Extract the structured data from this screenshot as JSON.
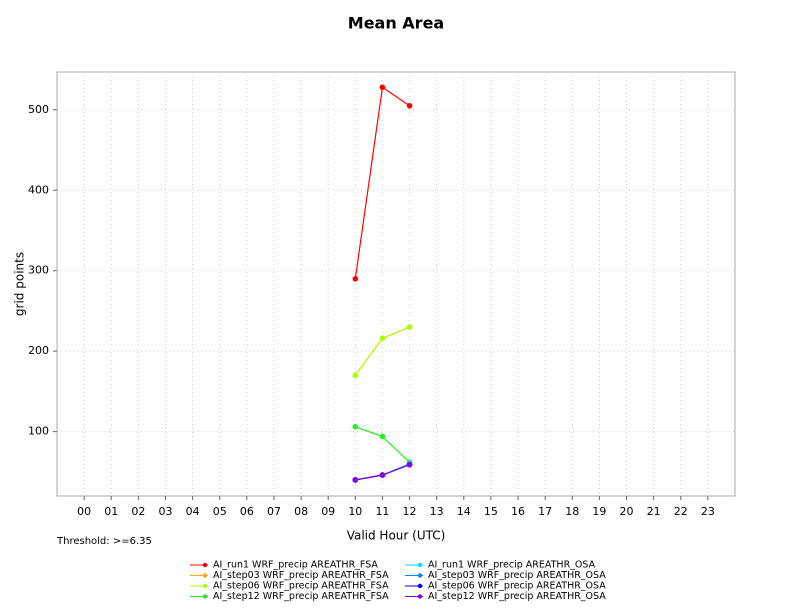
{
  "chart_data": {
    "type": "line",
    "title": "Mean Area",
    "x_label": "Valid Hour (UTC)",
    "y_label": "grid points",
    "annotation": "Threshold: >=6.35",
    "categories": [
      "00",
      "01",
      "02",
      "03",
      "04",
      "05",
      "06",
      "07",
      "08",
      "09",
      "10",
      "11",
      "12",
      "13",
      "14",
      "15",
      "16",
      "17",
      "18",
      "19",
      "20",
      "21",
      "22",
      "23"
    ],
    "ylim": [
      20,
      547
    ],
    "yticks": [
      100,
      200,
      300,
      400,
      500
    ],
    "grid": true,
    "series": [
      {
        "name": "AI_run1 WRF_precip AREATHR_FSA",
        "color": "#ff0000",
        "values": [
          null,
          null,
          null,
          null,
          null,
          null,
          null,
          null,
          null,
          null,
          290,
          528,
          505,
          null,
          null,
          null,
          null,
          null,
          null,
          null,
          null,
          null,
          null,
          null
        ]
      },
      {
        "name": "AI_step03 WRF_precip AREATHR_FSA",
        "color": "#ffaa00",
        "values": [
          null,
          null,
          null,
          null,
          null,
          null,
          null,
          null,
          null,
          null,
          170,
          216,
          230,
          null,
          null,
          null,
          null,
          null,
          null,
          null,
          null,
          null,
          null,
          null
        ]
      },
      {
        "name": "AI_step06 WRF_precip AREATHR_FSA",
        "color": "#aaff00",
        "values": [
          null,
          null,
          null,
          null,
          null,
          null,
          null,
          null,
          null,
          null,
          170,
          216,
          230,
          null,
          null,
          null,
          null,
          null,
          null,
          null,
          null,
          null,
          null,
          null
        ]
      },
      {
        "name": "AI_step12 WRF_precip AREATHR_FSA",
        "color": "#22ee22",
        "values": [
          null,
          null,
          null,
          null,
          null,
          null,
          null,
          null,
          null,
          null,
          106,
          94,
          62,
          null,
          null,
          null,
          null,
          null,
          null,
          null,
          null,
          null,
          null,
          null
        ]
      },
      {
        "name": "AI_run1 WRF_precip AREATHR_OSA",
        "color": "#00ddee",
        "values": [
          null,
          null,
          null,
          null,
          null,
          null,
          null,
          null,
          null,
          null,
          40,
          46,
          60,
          null,
          null,
          null,
          null,
          null,
          null,
          null,
          null,
          null,
          null,
          null
        ]
      },
      {
        "name": "AI_step03 WRF_precip AREATHR_OSA",
        "color": "#0088ff",
        "values": [
          null,
          null,
          null,
          null,
          null,
          null,
          null,
          null,
          null,
          null,
          40,
          46,
          59,
          null,
          null,
          null,
          null,
          null,
          null,
          null,
          null,
          null,
          null,
          null
        ]
      },
      {
        "name": "AI_step06 WRF_precip AREATHR_OSA",
        "color": "#0000ee",
        "values": [
          null,
          null,
          null,
          null,
          null,
          null,
          null,
          null,
          null,
          null,
          40,
          46,
          59,
          null,
          null,
          null,
          null,
          null,
          null,
          null,
          null,
          null,
          null,
          null
        ]
      },
      {
        "name": "AI_step12 WRF_precip AREATHR_OSA",
        "color": "#8800ee",
        "values": [
          null,
          null,
          null,
          null,
          null,
          null,
          null,
          null,
          null,
          null,
          40,
          46,
          59,
          null,
          null,
          null,
          null,
          null,
          null,
          null,
          null,
          null,
          null,
          null
        ]
      }
    ]
  }
}
